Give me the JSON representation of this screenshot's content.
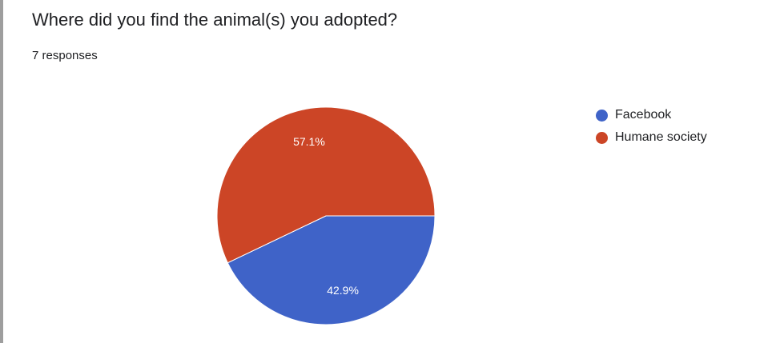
{
  "question": {
    "title": "Where did you find the animal(s) you adopted?",
    "responses": "7 responses"
  },
  "chart_data": {
    "type": "pie",
    "series": [
      {
        "name": "Facebook",
        "value": 42.9,
        "label": "42.9%",
        "color": "#3f63c8"
      },
      {
        "name": "Humane society",
        "value": 57.1,
        "label": "57.1%",
        "color": "#cc4526"
      }
    ],
    "legend_position": "right"
  }
}
